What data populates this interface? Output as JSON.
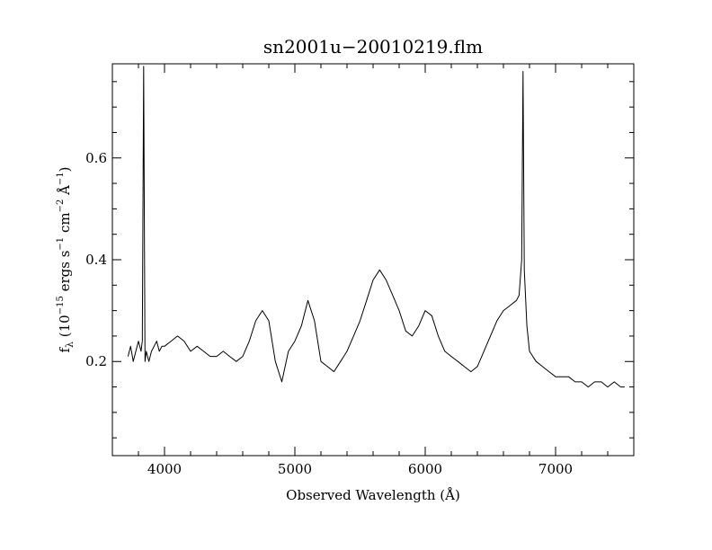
{
  "chart_data": {
    "type": "line",
    "title": "sn2001u−20010219.flm",
    "xlabel": "Observed Wavelength (Å)",
    "ylabel": {
      "f": "f",
      "lambda": "λ",
      "open": " (10",
      "exp1": "−15",
      "ergs": " ergs s",
      "exp2": "−1",
      "cm": " cm",
      "exp3": "−2",
      "ang": " Å",
      "exp4": "−1",
      "close": ")"
    },
    "xlim": [
      3600,
      7600
    ],
    "ylim": [
      0.015,
      0.785
    ],
    "x_ticks": [
      4000,
      5000,
      6000,
      7000
    ],
    "x_tick_labels": [
      "4000",
      "5000",
      "6000",
      "7000"
    ],
    "y_ticks": [
      0.2,
      0.4,
      0.6
    ],
    "y_tick_labels": [
      "0.2",
      "0.4",
      "0.6"
    ],
    "x_minor_step": 200,
    "y_minor_step": 0.05,
    "line_color": "#000000",
    "series": [
      {
        "x": [
          3720,
          3740,
          3760,
          3780,
          3800,
          3820,
          3830,
          3840,
          3850,
          3860,
          3880,
          3900,
          3920,
          3940,
          3960,
          3980,
          4000,
          4050,
          4100,
          4150,
          4200,
          4250,
          4300,
          4350,
          4400,
          4450,
          4500,
          4550,
          4600,
          4650,
          4700,
          4750,
          4800,
          4850,
          4900,
          4950,
          5000,
          5050,
          5100,
          5150,
          5200,
          5250,
          5300,
          5350,
          5400,
          5450,
          5500,
          5550,
          5600,
          5650,
          5700,
          5750,
          5800,
          5850,
          5900,
          5950,
          6000,
          6050,
          6100,
          6150,
          6200,
          6250,
          6300,
          6350,
          6400,
          6450,
          6500,
          6550,
          6600,
          6650,
          6700,
          6720,
          6740,
          6750,
          6760,
          6780,
          6800,
          6850,
          6900,
          6950,
          7000,
          7050,
          7100,
          7150,
          7200,
          7250,
          7300,
          7350,
          7400,
          7450,
          7500,
          7530
        ],
        "y": [
          0.21,
          0.23,
          0.2,
          0.22,
          0.24,
          0.22,
          0.24,
          0.78,
          0.2,
          0.22,
          0.2,
          0.22,
          0.23,
          0.24,
          0.22,
          0.23,
          0.23,
          0.24,
          0.25,
          0.24,
          0.22,
          0.23,
          0.22,
          0.21,
          0.21,
          0.22,
          0.21,
          0.2,
          0.21,
          0.24,
          0.28,
          0.3,
          0.28,
          0.2,
          0.16,
          0.22,
          0.24,
          0.27,
          0.32,
          0.28,
          0.2,
          0.19,
          0.18,
          0.2,
          0.22,
          0.25,
          0.28,
          0.32,
          0.36,
          0.38,
          0.36,
          0.33,
          0.3,
          0.26,
          0.25,
          0.27,
          0.3,
          0.29,
          0.25,
          0.22,
          0.21,
          0.2,
          0.19,
          0.18,
          0.19,
          0.22,
          0.25,
          0.28,
          0.3,
          0.31,
          0.32,
          0.33,
          0.4,
          0.77,
          0.38,
          0.27,
          0.22,
          0.2,
          0.19,
          0.18,
          0.17,
          0.17,
          0.17,
          0.16,
          0.16,
          0.15,
          0.16,
          0.16,
          0.15,
          0.16,
          0.15,
          0.15
        ]
      }
    ]
  }
}
